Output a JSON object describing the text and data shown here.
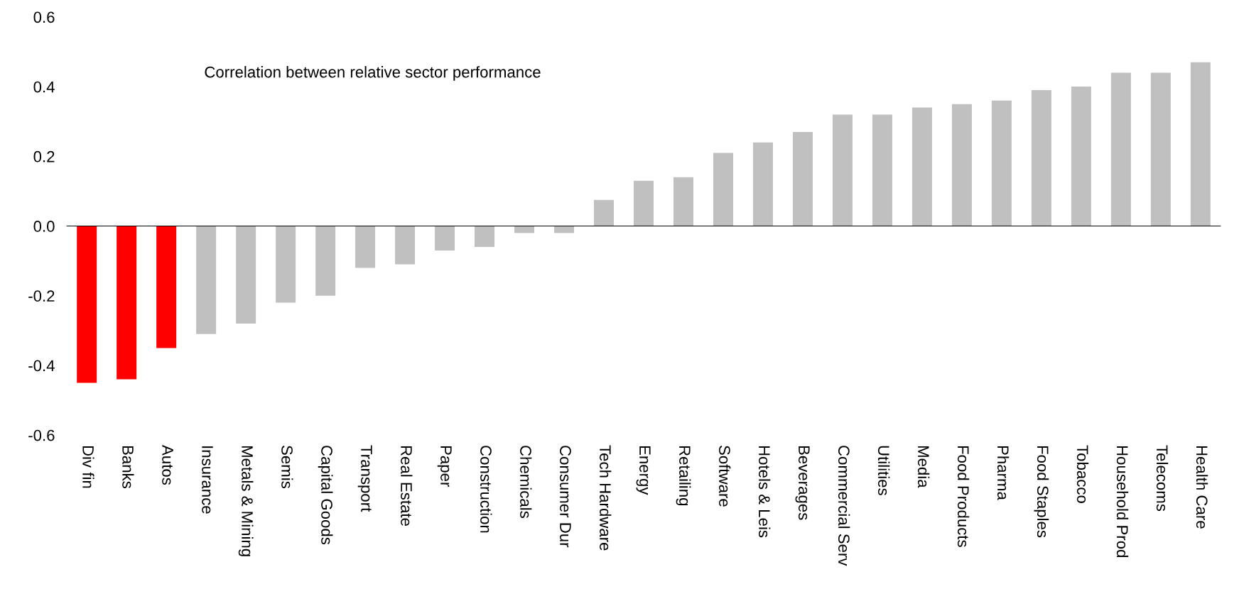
{
  "chart_data": {
    "type": "bar",
    "title": "Correlation between relative sector performance",
    "categories": [
      "Div fin",
      "Banks",
      "Autos",
      "Insurance",
      "Metals & Mining",
      "Semis",
      "Capital Goods",
      "Transport",
      "Real Estate",
      "Paper",
      "Construction",
      "Chemicals",
      "Consumer Dur",
      "Tech Hardware",
      "Energy",
      "Retailing",
      "Software",
      "Hotels & Leis",
      "Beverages",
      "Commercial Serv",
      "Utilities",
      "Media",
      "Food Products",
      "Pharma",
      "Food Staples",
      "Tobacco",
      "Household Prod",
      "Telecoms",
      "Health Care"
    ],
    "values": [
      -0.45,
      -0.44,
      -0.35,
      -0.31,
      -0.28,
      -0.22,
      -0.2,
      -0.12,
      -0.11,
      -0.07,
      -0.06,
      -0.02,
      -0.02,
      0.075,
      0.13,
      0.14,
      0.21,
      0.24,
      0.27,
      0.32,
      0.32,
      0.34,
      0.35,
      0.36,
      0.39,
      0.4,
      0.44,
      0.44,
      0.47
    ],
    "colors": [
      "#ff0000",
      "#ff0000",
      "#ff0000",
      "#c0c0c0",
      "#c0c0c0",
      "#c0c0c0",
      "#c0c0c0",
      "#c0c0c0",
      "#c0c0c0",
      "#c0c0c0",
      "#c0c0c0",
      "#c0c0c0",
      "#c0c0c0",
      "#c0c0c0",
      "#c0c0c0",
      "#c0c0c0",
      "#c0c0c0",
      "#c0c0c0",
      "#c0c0c0",
      "#c0c0c0",
      "#c0c0c0",
      "#c0c0c0",
      "#c0c0c0",
      "#c0c0c0",
      "#c0c0c0",
      "#c0c0c0",
      "#c0c0c0",
      "#c0c0c0",
      "#c0c0c0"
    ],
    "ylim": [
      -0.6,
      0.6
    ],
    "yticks": [
      -0.6,
      -0.4,
      -0.2,
      {
        "value": 0,
        "label": "0.0"
      },
      0.2,
      0.4,
      0.6
    ],
    "legend": false
  }
}
